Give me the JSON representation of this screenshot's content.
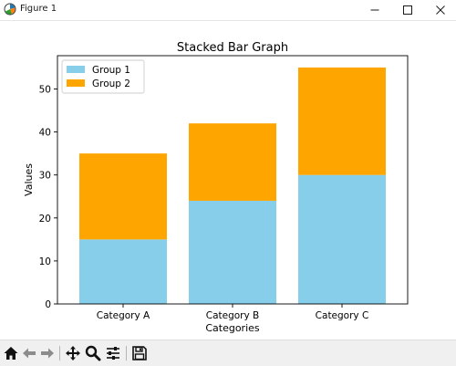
{
  "window": {
    "title": "Figure 1"
  },
  "icons": {
    "app": "matplotlib-figure-icon",
    "minimize": "minimize-icon",
    "maximize": "maximize-icon",
    "close": "close-icon",
    "toolbar": [
      "home-icon",
      "back-arrow-icon",
      "forward-arrow-icon",
      "pan-move-icon",
      "zoom-magnifier-icon",
      "configure-subplots-icon",
      "save-floppy-icon"
    ]
  },
  "chart_data": {
    "type": "bar",
    "stacked": true,
    "title": "Stacked Bar Graph",
    "xlabel": "Categories",
    "ylabel": "Values",
    "categories": [
      "Category A",
      "Category B",
      "Category C"
    ],
    "series": [
      {
        "name": "Group 1",
        "values": [
          15,
          24,
          30
        ],
        "color": "#87CEEB"
      },
      {
        "name": "Group 2",
        "values": [
          20,
          18,
          25
        ],
        "color": "#FFA500"
      }
    ],
    "ylim": [
      0,
      57.75
    ],
    "yticks": [
      0,
      10,
      20,
      30,
      40,
      50
    ],
    "legend_position": "top-left",
    "grid": false
  }
}
